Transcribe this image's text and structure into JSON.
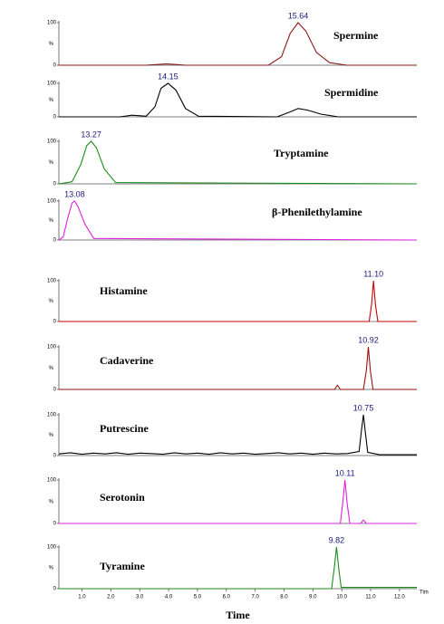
{
  "chart_data": [
    {
      "type": "line",
      "title": "Spermine",
      "ylabel": "%",
      "color": "#8b1a1a",
      "xlim": [
        12.9,
        17.0
      ],
      "ylim": [
        0,
        100
      ],
      "yticks": [
        0,
        100
      ],
      "x": [
        12.9,
        13.9,
        14.05,
        14.13,
        14.22,
        14.35,
        15.3,
        15.45,
        15.55,
        15.64,
        15.73,
        15.85,
        16.0,
        16.2,
        17.0
      ],
      "values": [
        0,
        0,
        2,
        3,
        2,
        0,
        0,
        20,
        75,
        100,
        80,
        30,
        6,
        0,
        0
      ],
      "peak": {
        "x": 15.64,
        "label": "15.64"
      }
    },
    {
      "type": "line",
      "title": "Spermidine",
      "ylabel": "%",
      "color": "#000000",
      "xlim": [
        12.9,
        17.0
      ],
      "ylim": [
        0,
        100
      ],
      "yticks": [
        0,
        100
      ],
      "x": [
        12.9,
        13.6,
        13.74,
        13.9,
        14.0,
        14.07,
        14.15,
        14.24,
        14.35,
        14.5,
        15.4,
        15.55,
        15.64,
        15.75,
        15.9,
        16.1,
        17.0
      ],
      "values": [
        0,
        0,
        5,
        2,
        30,
        85,
        100,
        80,
        25,
        2,
        0,
        15,
        25,
        20,
        8,
        0,
        0
      ],
      "peak": {
        "x": 14.15,
        "label": "14.15"
      }
    },
    {
      "type": "line",
      "title": "Tryptamine",
      "ylabel": "%",
      "color": "#1a8c1a",
      "xlim": [
        12.9,
        17.0
      ],
      "ylim": [
        0,
        100
      ],
      "yticks": [
        0,
        100
      ],
      "x": [
        12.9,
        13.05,
        13.15,
        13.22,
        13.27,
        13.33,
        13.42,
        13.55,
        17.0
      ],
      "values": [
        0,
        5,
        45,
        90,
        100,
        85,
        35,
        3,
        0
      ],
      "peak": {
        "x": 13.27,
        "label": "13.27"
      }
    },
    {
      "type": "line",
      "title": "β-Phenilethylamine",
      "ylabel": "%",
      "color": "#e020e0",
      "xlim": [
        12.9,
        17.0
      ],
      "ylim": [
        0,
        100
      ],
      "yticks": [
        0,
        100
      ],
      "x": [
        12.9,
        12.95,
        13.0,
        13.05,
        13.08,
        13.12,
        13.2,
        13.3,
        17.0
      ],
      "values": [
        0,
        8,
        55,
        95,
        100,
        85,
        40,
        4,
        0
      ],
      "peak": {
        "x": 13.08,
        "label": "13.08"
      }
    },
    {
      "type": "line",
      "title": "Histamine",
      "ylabel": "%",
      "color": "#cc0000",
      "xlim": [
        0.2,
        12.6
      ],
      "ylim": [
        0,
        100
      ],
      "yticks": [
        0,
        100
      ],
      "x": [
        0.2,
        10.95,
        11.03,
        11.1,
        11.17,
        11.25,
        12.6
      ],
      "values": [
        0,
        0,
        40,
        100,
        40,
        0,
        0
      ],
      "peak": {
        "x": 11.1,
        "label": "11.10"
      }
    },
    {
      "type": "line",
      "title": "Cadaverine",
      "ylabel": "%",
      "color": "#991111",
      "xlim": [
        0.2,
        12.6
      ],
      "ylim": [
        0,
        100
      ],
      "yticks": [
        0,
        100
      ],
      "x": [
        0.2,
        9.75,
        9.85,
        9.95,
        10.75,
        10.85,
        10.92,
        10.99,
        11.08,
        12.6
      ],
      "values": [
        0,
        0,
        10,
        0,
        0,
        45,
        100,
        45,
        0,
        0
      ],
      "peak": {
        "x": 10.92,
        "label": "10.92"
      }
    },
    {
      "type": "line",
      "title": "Putrescine",
      "ylabel": "%",
      "color": "#000000",
      "xlim": [
        0.2,
        12.6
      ],
      "ylim": [
        0,
        100
      ],
      "yticks": [
        0,
        100
      ],
      "x": [
        0.2,
        0.6,
        1.0,
        1.4,
        1.8,
        2.2,
        2.6,
        3.0,
        3.4,
        3.8,
        4.2,
        4.6,
        5.0,
        5.4,
        5.8,
        6.2,
        6.6,
        7.0,
        7.4,
        7.8,
        8.2,
        8.6,
        9.0,
        9.4,
        9.8,
        10.2,
        10.6,
        10.68,
        10.75,
        10.82,
        10.9,
        11.3,
        12.6
      ],
      "values": [
        4,
        7,
        3,
        6,
        4,
        7,
        3,
        6,
        5,
        3,
        7,
        4,
        6,
        3,
        7,
        4,
        6,
        3,
        5,
        7,
        4,
        6,
        3,
        6,
        4,
        5,
        10,
        60,
        100,
        55,
        8,
        2,
        2
      ],
      "peak": {
        "x": 10.75,
        "label": "10.75"
      }
    },
    {
      "type": "line",
      "title": "Serotonin",
      "ylabel": "%",
      "color": "#e020e0",
      "xlim": [
        0.2,
        12.6
      ],
      "ylim": [
        0,
        100
      ],
      "yticks": [
        0,
        100
      ],
      "x": [
        0.2,
        9.95,
        10.03,
        10.11,
        10.19,
        10.28,
        10.65,
        10.75,
        10.85,
        12.6
      ],
      "values": [
        0,
        0,
        45,
        100,
        45,
        0,
        0,
        8,
        0,
        0
      ],
      "peak": {
        "x": 10.11,
        "label": "10.11"
      }
    },
    {
      "type": "line",
      "title": "Tyramine",
      "ylabel": "%",
      "color": "#1a8c1a",
      "xlim": [
        0.2,
        12.6
      ],
      "ylim": [
        0,
        100
      ],
      "yticks": [
        0,
        100
      ],
      "x": [
        0.2,
        9.65,
        9.74,
        9.82,
        9.9,
        9.98,
        10.2,
        12.6
      ],
      "values": [
        0,
        0,
        50,
        100,
        45,
        3,
        3,
        3
      ],
      "peak": {
        "x": 9.82,
        "label": "9.82"
      },
      "xticks": [
        {
          "value": 1,
          "label": "1.0"
        },
        {
          "value": 2,
          "label": "2.0"
        },
        {
          "value": 3,
          "label": "3.0"
        },
        {
          "value": 4,
          "label": "4.0"
        },
        {
          "value": 5,
          "label": "5.0"
        },
        {
          "value": 6,
          "label": "6.0"
        },
        {
          "value": 7,
          "label": "7.0"
        },
        {
          "value": 8,
          "label": "8.0"
        },
        {
          "value": 9,
          "label": "9.0"
        },
        {
          "value": 10,
          "label": "10.0"
        },
        {
          "value": 11,
          "label": "11.0"
        },
        {
          "value": 12,
          "label": "12.0"
        }
      ],
      "x_axis_end_label": "Tim",
      "xlabel": "Time"
    }
  ]
}
